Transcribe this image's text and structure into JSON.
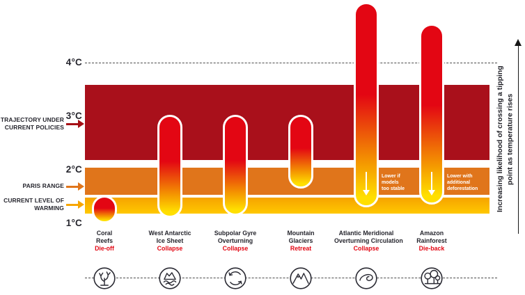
{
  "page": {
    "background": "#ffffff"
  },
  "left_labels": [
    {
      "label": "TRAJECTORY UNDER CURRENT POLICIES",
      "arrow_color": "#a50f15"
    },
    {
      "label": "PARIS RANGE",
      "arrow_color": "#e0751b"
    },
    {
      "label": "CURRENT LEVEL OF WARMING",
      "arrow_color": "#f7a600"
    }
  ],
  "right_axis_label": {
    "line1": "Increasing likelihood of crossing a tipping",
    "line2": "point as temperature rises"
  },
  "chart_data": {
    "type": "bar",
    "title": "",
    "xlabel": "",
    "ylabel": "",
    "ylim": [
      1,
      5.2
    ],
    "yticks": [
      {
        "label": "4°C",
        "value": 4
      },
      {
        "label": "3°C",
        "value": 3
      },
      {
        "label": "2°C",
        "value": 2
      },
      {
        "label": "1°C",
        "value": 1
      }
    ],
    "gridlines": [
      "dashed line at 4°C",
      "dashed baseline through icons"
    ],
    "bands": [
      {
        "name": "Trajectory under current policies",
        "from": 2.2,
        "to": 3.6,
        "color": "#a9101b"
      },
      {
        "name": "Paris range",
        "from": 1.55,
        "to": 2.05,
        "color": "#e0751b"
      },
      {
        "name": "Current level of warming",
        "from": 1.2,
        "to": 1.5,
        "color": "#f6a300",
        "color2": "#ffc800"
      }
    ],
    "series": [
      {
        "name": "Coral Reefs",
        "name_lines": [
          "Coral",
          "Reefs"
        ],
        "action": "Die-off",
        "icon": "coral-icon",
        "min": 1.05,
        "max": 1.5
      },
      {
        "name": "West Antarctic Ice Sheet",
        "name_lines": [
          "West Antarctic",
          "Ice Sheet"
        ],
        "action": "Collapse",
        "icon": "ice-sheet-icon",
        "min": 1.15,
        "max": 3.0
      },
      {
        "name": "Subpolar Gyre Overturning",
        "name_lines": [
          "Subpolar Gyre",
          "Overturning"
        ],
        "action": "Collapse",
        "icon": "gyre-icon",
        "min": 1.2,
        "max": 3.0
      },
      {
        "name": "Mountain Glaciers",
        "name_lines": [
          "Mountain",
          "Glaciers"
        ],
        "action": "Retreat",
        "icon": "mountain-icon",
        "min": 1.7,
        "max": 3.0
      },
      {
        "name": "Atlantic Meridional Overturning Circulation",
        "name_lines": [
          "Atlantic Meridional",
          "Overturning Circulation"
        ],
        "action": "Collapse",
        "icon": "amoc-icon",
        "min": 1.35,
        "max": 5.1,
        "note": "Lower if models too stable",
        "note_lines": [
          "Lower if",
          "models",
          "too stable"
        ]
      },
      {
        "name": "Amazon Rainforest",
        "name_lines": [
          "Amazon",
          "Rainforest"
        ],
        "action": "Die-back",
        "icon": "rainforest-icon",
        "min": 1.4,
        "max": 4.7,
        "note": "Lower with additional deforestation",
        "note_lines": [
          "Lower with",
          "additional",
          "deforestation"
        ]
      }
    ],
    "bar_gradient": [
      "#e30613",
      "#f59c00",
      "#ffdf00"
    ],
    "action_color": "#e30613",
    "text_color": "#26262e"
  }
}
